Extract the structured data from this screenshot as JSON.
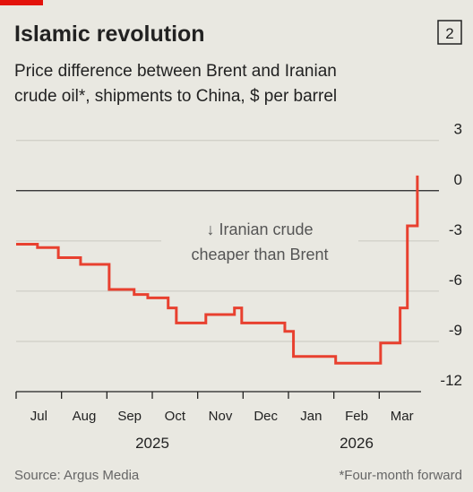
{
  "header": {
    "title": "Islamic revolution",
    "chart_number": "2"
  },
  "chart_data": {
    "type": "line",
    "step": true,
    "subtitle": [
      "Price difference between Brent and Iranian",
      "crude oil*, shipments to China, $ per barrel"
    ],
    "months": [
      "Jul",
      "Aug",
      "Sep",
      "Oct",
      "Nov",
      "Dec",
      "Jan",
      "Feb",
      "Mar"
    ],
    "years": [
      "2025",
      "2026"
    ],
    "x": [
      0,
      0.47,
      0.93,
      1.42,
      2.05,
      2.6,
      2.9,
      3.35,
      3.53,
      4.18,
      4.81,
      4.97,
      5.92,
      6.11,
      7.04,
      8.03,
      8.46,
      8.62,
      8.84
    ],
    "values": [
      -3.2,
      -3.4,
      -4.0,
      -4.4,
      -5.9,
      -6.2,
      -6.4,
      -7.0,
      -7.9,
      -7.4,
      -7.0,
      -7.9,
      -8.4,
      -9.9,
      -10.3,
      -9.1,
      -7.0,
      -2.1,
      0.9
    ],
    "color": "#e8402f",
    "xlim": [
      0,
      9
    ],
    "ylim": [
      -12,
      4
    ],
    "yticks": [
      3,
      0,
      -3,
      -6,
      -9,
      -12
    ],
    "annotation": [
      "↓ Iranian crude",
      "cheaper than Brent"
    ],
    "source": "Source: Argus Media",
    "footnote": "*Four-month forward"
  }
}
